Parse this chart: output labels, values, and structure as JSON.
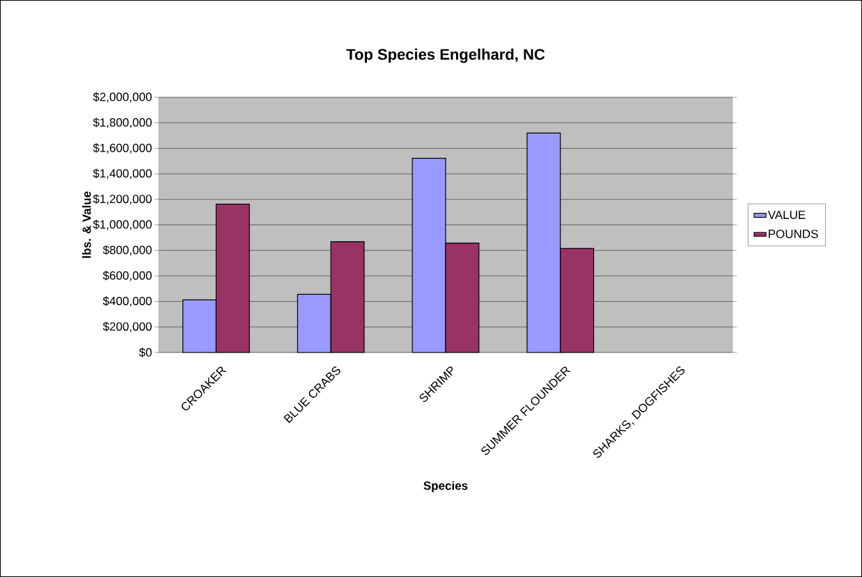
{
  "chart_data": {
    "type": "bar",
    "title": "Top Species Engelhard, NC",
    "xlabel": "Species",
    "ylabel": "lbs. & Value",
    "categories": [
      "CROAKER",
      "BLUE CRABS",
      "SHRIMP",
      "SUMMER FLOUNDER",
      "SHARKS, DOGFISHES"
    ],
    "series": [
      {
        "name": "VALUE",
        "color": "#9999ff",
        "values": [
          412000,
          456000,
          1523000,
          1720000,
          null
        ]
      },
      {
        "name": "POUNDS",
        "color": "#993366",
        "values": [
          1163000,
          869000,
          858000,
          815000,
          null
        ]
      }
    ],
    "ylim": [
      0,
      2000000
    ],
    "yticks": [
      {
        "value": 0,
        "label": "$0"
      },
      {
        "value": 200000,
        "label": "$200,000"
      },
      {
        "value": 400000,
        "label": "$400,000"
      },
      {
        "value": 600000,
        "label": "$600,000"
      },
      {
        "value": 800000,
        "label": "$800,000"
      },
      {
        "value": 1000000,
        "label": "$1,000,000"
      },
      {
        "value": 1200000,
        "label": "$1,200,000"
      },
      {
        "value": 1400000,
        "label": "$1,400,000"
      },
      {
        "value": 1600000,
        "label": "$1,600,000"
      },
      {
        "value": 1800000,
        "label": "$1,800,000"
      },
      {
        "value": 2000000,
        "label": "$2,000,000"
      }
    ],
    "grid": "y",
    "legend": "right"
  }
}
